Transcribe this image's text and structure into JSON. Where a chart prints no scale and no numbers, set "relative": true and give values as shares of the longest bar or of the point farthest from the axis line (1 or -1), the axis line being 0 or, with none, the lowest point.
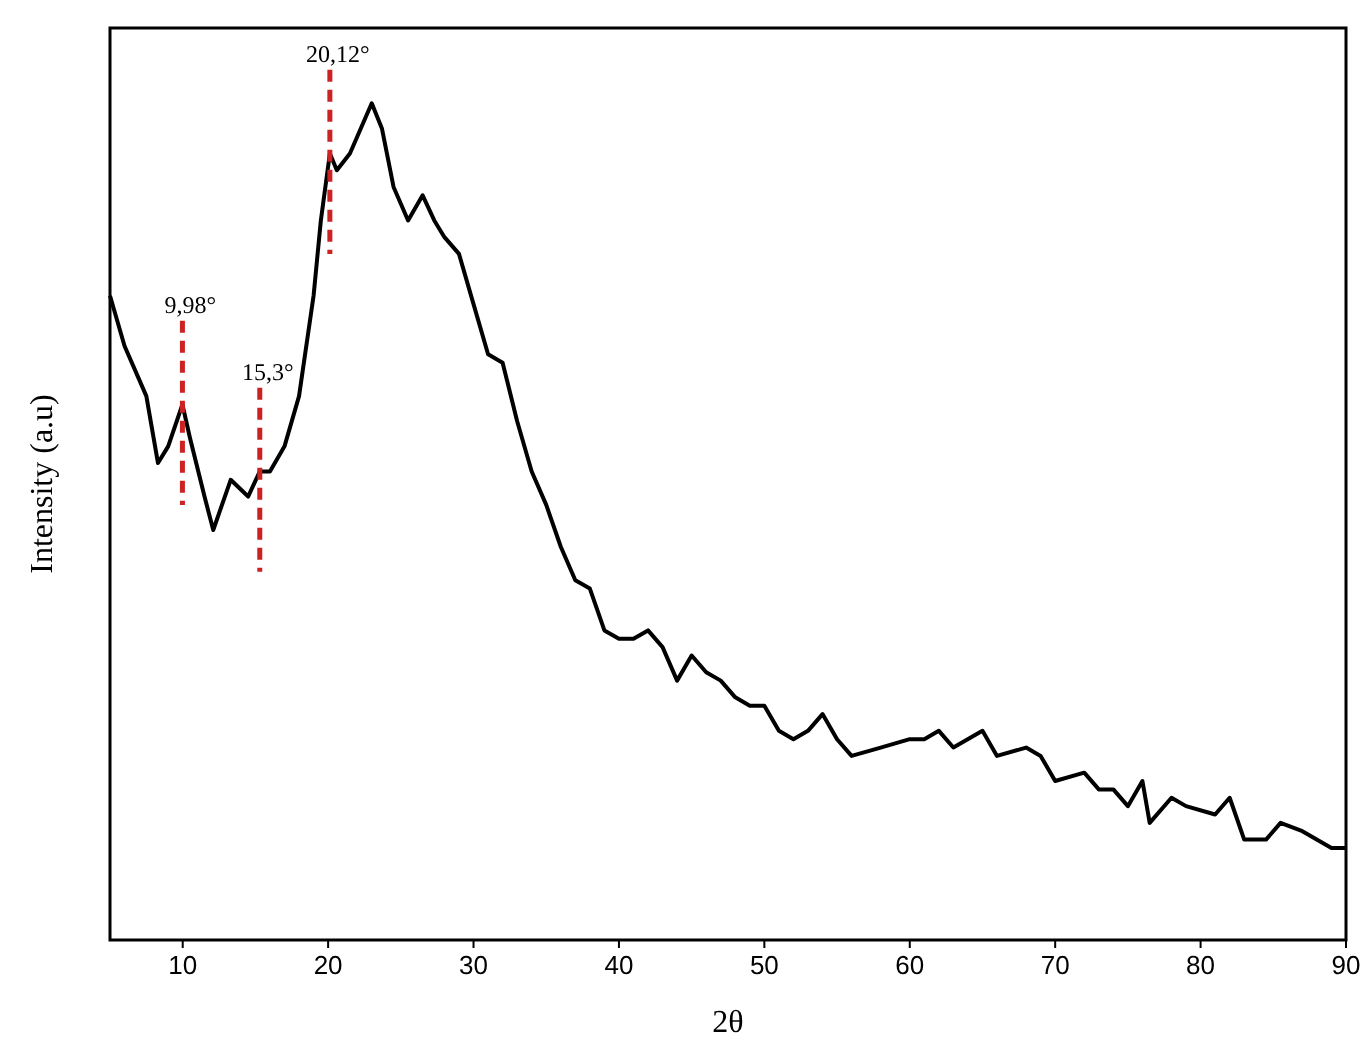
{
  "chart_data": {
    "type": "line",
    "xlabel": "2θ",
    "ylabel": "Intensity (a.u)",
    "relative": true,
    "xlim": [
      5,
      90
    ],
    "xticks": [
      10,
      20,
      30,
      40,
      50,
      60,
      70,
      80,
      90
    ],
    "grid": false,
    "line_style": "solid",
    "x": [
      5,
      6,
      7,
      7.5,
      8.3,
      9,
      9.98,
      10.5,
      11.5,
      12.1,
      13.3,
      14.5,
      15.3,
      16,
      17,
      18,
      19,
      19.5,
      20.12,
      20.6,
      21.5,
      22,
      23,
      23.7,
      24.5,
      25.5,
      26.5,
      27.3,
      28,
      29,
      30,
      31,
      32,
      33,
      34,
      35,
      36,
      37,
      38,
      39,
      40,
      41,
      42,
      43,
      44,
      45,
      46,
      47,
      48,
      49,
      50,
      51,
      52,
      53,
      54,
      55,
      56,
      58,
      60,
      61,
      62,
      63,
      65,
      66,
      68,
      69,
      70,
      72,
      73,
      74,
      75,
      76,
      76.5,
      78,
      79,
      81,
      82,
      83,
      84.5,
      85.5,
      87,
      89,
      90
    ],
    "series": [
      {
        "color": "#000000",
        "values": [
          0.77,
          0.71,
          0.67,
          0.65,
          0.57,
          0.59,
          0.64,
          0.6,
          0.53,
          0.49,
          0.55,
          0.53,
          0.56,
          0.56,
          0.59,
          0.65,
          0.77,
          0.86,
          0.94,
          0.92,
          0.94,
          0.96,
          1,
          0.97,
          0.9,
          0.86,
          0.89,
          0.86,
          0.84,
          0.82,
          0.76,
          0.7,
          0.69,
          0.62,
          0.56,
          0.52,
          0.47,
          0.43,
          0.42,
          0.37,
          0.36,
          0.36,
          0.37,
          0.35,
          0.31,
          0.34,
          0.32,
          0.31,
          0.29,
          0.28,
          0.28,
          0.25,
          0.24,
          0.25,
          0.27,
          0.24,
          0.22,
          0.23,
          0.24,
          0.24,
          0.25,
          0.23,
          0.25,
          0.22,
          0.23,
          0.22,
          0.19,
          0.2,
          0.18,
          0.18,
          0.16,
          0.19,
          0.14,
          0.17,
          0.16,
          0.15,
          0.17,
          0.12,
          0.12,
          0.14,
          0.13,
          0.11,
          0.11
        ]
      }
    ],
    "ref_lines": [
      {
        "axis": "x",
        "value": 9.98,
        "label": "9,98°",
        "color": "#cc2222",
        "line_style": "dashed"
      },
      {
        "axis": "x",
        "value": 15.3,
        "label": "15,3°",
        "color": "#cc2222",
        "line_style": "dashed"
      },
      {
        "axis": "x",
        "value": 20.12,
        "label": "20,12°",
        "color": "#cc2222",
        "line_style": "dashed"
      }
    ]
  }
}
